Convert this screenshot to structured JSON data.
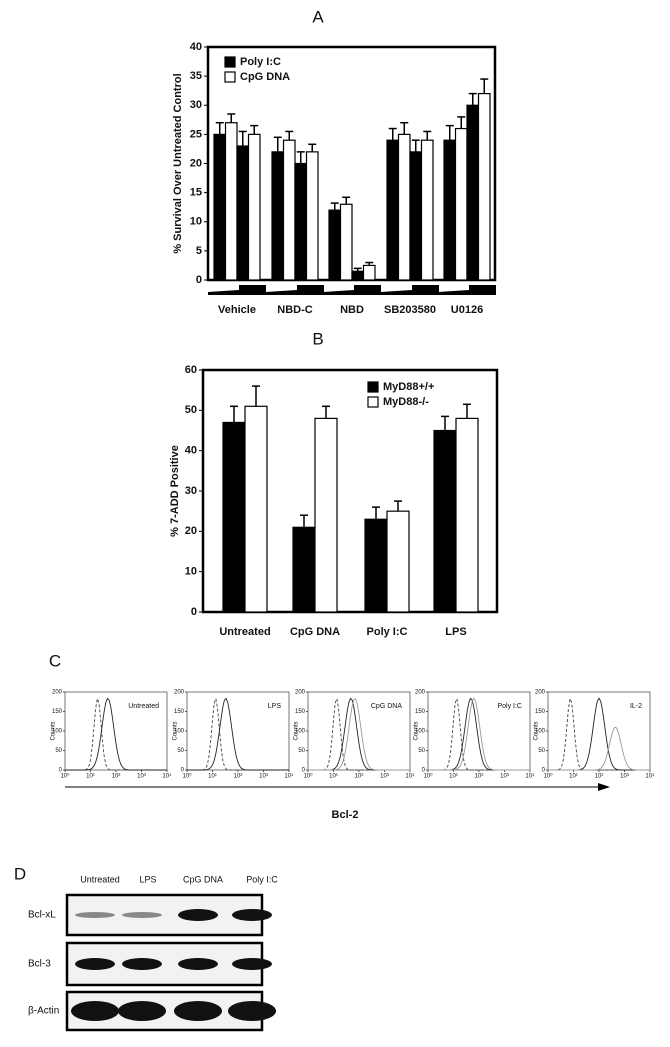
{
  "chart_data": [
    {
      "type": "bar",
      "title": "A",
      "ylabel": "% Survival Over Untreated Control",
      "categories": [
        "Vehicle",
        "NBD-C",
        "NBD",
        "SB203580",
        "U0126"
      ],
      "series": [
        {
          "name": "Poly I:C",
          "color": "#000000",
          "values": [
            [
              25,
              23
            ],
            [
              22,
              20
            ],
            [
              12,
              1.5
            ],
            [
              24,
              22
            ],
            [
              24,
              30
            ]
          ],
          "errors": [
            [
              2,
              2.5
            ],
            [
              2.5,
              2
            ],
            [
              1.2,
              0.5
            ],
            [
              2,
              2
            ],
            [
              2.5,
              2
            ]
          ]
        },
        {
          "name": "CpG DNA",
          "color": "#ffffff",
          "values": [
            [
              27,
              25
            ],
            [
              24,
              22
            ],
            [
              13,
              2.5
            ],
            [
              25,
              24
            ],
            [
              26,
              32
            ]
          ],
          "errors": [
            [
              1.5,
              1.5
            ],
            [
              1.5,
              1.3
            ],
            [
              1.2,
              0.5
            ],
            [
              2,
              1.5
            ],
            [
              2,
              2.5
            ]
          ]
        }
      ],
      "ylim": [
        0,
        40
      ],
      "yticks": [
        0,
        5,
        10,
        15,
        20,
        25,
        30,
        35,
        40
      ]
    },
    {
      "type": "bar",
      "title": "B",
      "ylabel": "% 7-ADD Positive",
      "categories": [
        "Untreated",
        "CpG DNA",
        "Poly I:C",
        "LPS"
      ],
      "series": [
        {
          "name": "MyD88+/+",
          "color": "#000000",
          "values": [
            47,
            21,
            23,
            45
          ],
          "errors": [
            4,
            3,
            3,
            3.5
          ]
        },
        {
          "name": "MyD88-/-",
          "color": "#ffffff",
          "values": [
            51,
            48,
            25,
            48
          ],
          "errors": [
            5,
            3,
            2.5,
            3.5
          ]
        }
      ],
      "ylim": [
        0,
        60
      ],
      "yticks": [
        0,
        10,
        20,
        30,
        40,
        50,
        60
      ]
    }
  ],
  "flow_panel": {
    "title": "C",
    "xlabel": "Bcl-2",
    "ylabel": "Counts",
    "panels": [
      "Untreated",
      "LPS",
      "CpG DNA",
      "Poly I:C",
      "IL-2"
    ],
    "yticks": [
      0,
      50,
      100,
      150,
      200
    ],
    "xticks": [
      {
        "value": 1,
        "label": "10⁰"
      },
      {
        "value": 10,
        "label": "10¹"
      },
      {
        "value": 100,
        "label": "10²"
      },
      {
        "value": 1000,
        "label": "10³"
      },
      {
        "value": 10000,
        "label": "10⁴"
      }
    ]
  },
  "blot_panel": {
    "title": "D",
    "lanes": [
      "Untreated",
      "LPS",
      "CpG DNA",
      "Poly I:C"
    ],
    "rows": [
      "Bcl-xL",
      "Bcl-3",
      "β-Actin"
    ]
  }
}
